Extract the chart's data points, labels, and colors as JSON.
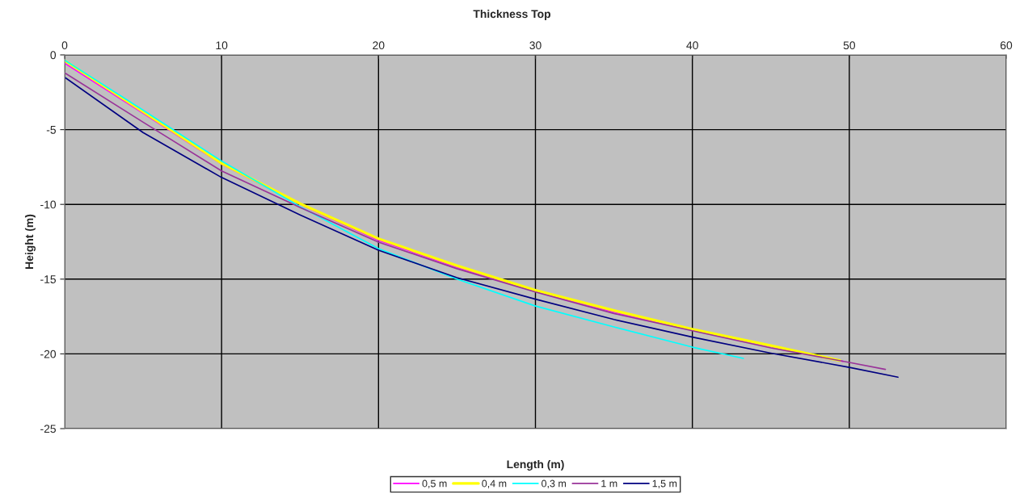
{
  "chart_data": {
    "type": "line",
    "title": "Thickness Top",
    "xlabel": "Length (m)",
    "ylabel": "Height (m)",
    "xlim": [
      0,
      60
    ],
    "xticks": [
      0,
      10,
      20,
      30,
      40,
      50,
      60
    ],
    "ylim": [
      -25,
      0
    ],
    "yticks": [
      -25,
      -20,
      -15,
      -10,
      -5,
      0
    ],
    "grid": true,
    "legend": "bottom",
    "line_style": "solid",
    "marker": "none",
    "series": [
      {
        "name": "0,5 m",
        "color": "#ff00ff",
        "x": [
          0,
          5,
          10,
          15,
          20,
          25,
          30,
          35,
          40,
          45,
          49.6
        ],
        "values": [
          -0.56,
          -3.9,
          -7.31,
          -10.0,
          -12.4,
          -14.2,
          -15.8,
          -17.2,
          -18.4,
          -19.5,
          -20.5
        ]
      },
      {
        "name": "0,4 m",
        "color": "#ffff00",
        "x": [
          0,
          5,
          10,
          15,
          20,
          25,
          30,
          35,
          40,
          45,
          49.4
        ],
        "values": [
          -0.38,
          -3.8,
          -7.25,
          -9.95,
          -12.3,
          -14.1,
          -15.75,
          -17.1,
          -18.35,
          -19.45,
          -20.45
        ]
      },
      {
        "name": "0,3 m",
        "color": "#00ffff",
        "x": [
          0,
          5,
          10,
          15,
          20,
          25,
          30,
          35,
          40,
          43.25
        ],
        "values": [
          -0.35,
          -3.7,
          -7.1,
          -10.15,
          -12.96,
          -15.0,
          -16.8,
          -18.2,
          -19.55,
          -20.3
        ]
      },
      {
        "name": "1 m",
        "color": "#993399",
        "x": [
          0,
          5,
          10,
          15,
          20,
          25,
          30,
          35,
          40,
          45,
          50,
          52.3
        ],
        "values": [
          -1.2,
          -4.5,
          -7.76,
          -10.2,
          -12.53,
          -14.3,
          -15.86,
          -17.3,
          -18.45,
          -19.6,
          -20.57,
          -21.04
        ]
      },
      {
        "name": "1,5 m",
        "color": "#000080",
        "x": [
          0,
          5,
          10,
          15,
          20,
          25,
          30,
          35,
          40,
          45,
          50,
          53.1
        ],
        "values": [
          -1.5,
          -5.2,
          -8.2,
          -10.7,
          -13.07,
          -14.9,
          -16.34,
          -17.7,
          -18.88,
          -19.95,
          -20.9,
          -21.56
        ]
      }
    ]
  }
}
